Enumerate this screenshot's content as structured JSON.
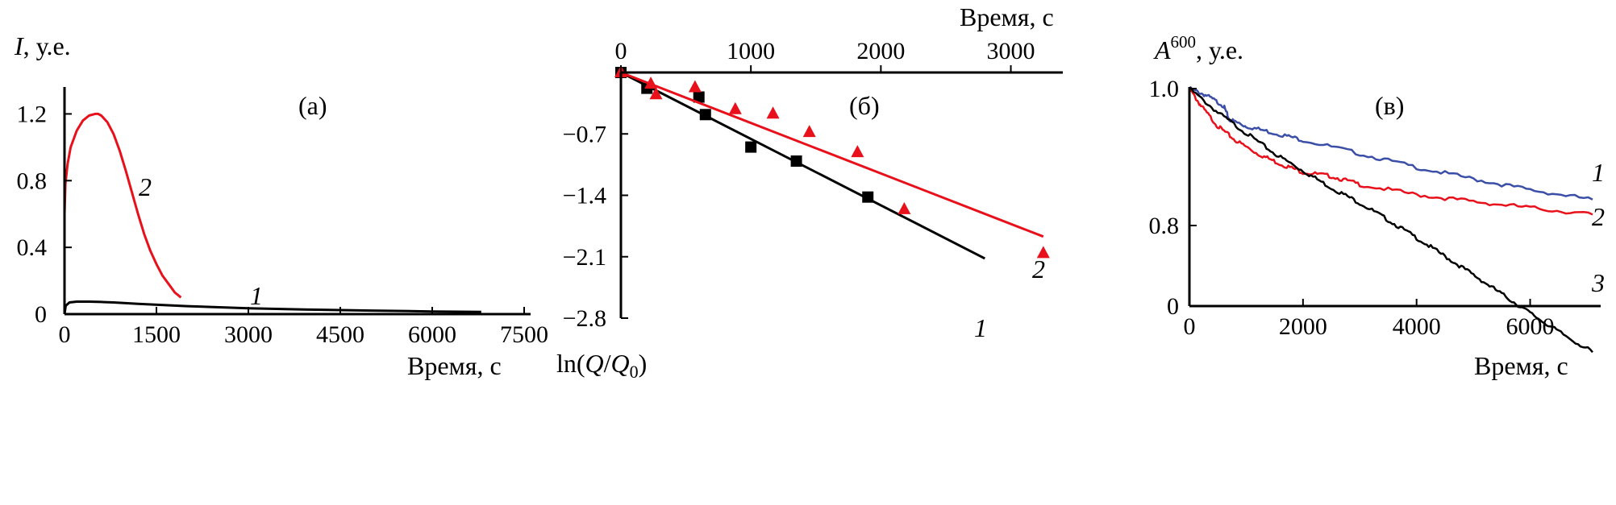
{
  "colors": {
    "black": "#000000",
    "red": "#e8101a",
    "blue": "#3b4ea8"
  },
  "chart_data": [
    {
      "panel": "(а)",
      "type": "line",
      "ylabel_var": "I",
      "ylabel_unit": ", у.е.",
      "xlabel": "Время, с",
      "xlim": [
        0,
        7500
      ],
      "ylim": [
        0,
        1.4
      ],
      "xticks": [
        "0",
        "1500",
        "3000",
        "4500",
        "6000",
        "7500"
      ],
      "yticks": [
        "0",
        "0.4",
        "0.8",
        "1.2"
      ],
      "series": [
        {
          "name": "2",
          "color": "#e8101a",
          "x": [
            0,
            0,
            15,
            50,
            100,
            200,
            300,
            400,
            500,
            550,
            600,
            650,
            700,
            800,
            900,
            1000,
            1100,
            1200,
            1300,
            1400,
            1500,
            1600,
            1700,
            1800,
            1900
          ],
          "y": [
            0,
            0.6,
            0.78,
            0.9,
            1.0,
            1.1,
            1.16,
            1.19,
            1.2,
            1.2,
            1.19,
            1.17,
            1.15,
            1.08,
            0.98,
            0.86,
            0.73,
            0.6,
            0.48,
            0.38,
            0.3,
            0.23,
            0.18,
            0.13,
            0.1
          ]
        },
        {
          "name": "1",
          "color": "#000000",
          "x": [
            0,
            20,
            80,
            200,
            400,
            600,
            800,
            1200,
            2000,
            3000,
            4000,
            5000,
            6000,
            6800
          ],
          "y": [
            0,
            0.05,
            0.07,
            0.075,
            0.075,
            0.073,
            0.07,
            0.062,
            0.048,
            0.035,
            0.027,
            0.021,
            0.016,
            0.013
          ]
        }
      ]
    },
    {
      "panel": "(б)",
      "type": "scatter",
      "xlabel": "Время, с",
      "ylabel_prefix": "ln(",
      "ylabel_q": "Q",
      "ylabel_slash": "/",
      "ylabel_q0": "Q",
      "ylabel_sub": "0",
      "ylabel_suffix": ")",
      "xlim": [
        0,
        3400
      ],
      "ylim": [
        -2.8,
        0
      ],
      "xticks": [
        "0",
        "1000",
        "2000",
        "3000"
      ],
      "yticks": [
        "−0.7",
        "−1.4",
        "−2.1",
        "−2.8"
      ],
      "series": [
        {
          "name": "1",
          "color": "#000000",
          "marker": "square",
          "x": [
            0,
            200,
            600,
            650,
            1000,
            1350,
            1900
          ],
          "y": [
            0,
            -0.18,
            -0.28,
            -0.48,
            -0.85,
            -1.01,
            -1.42
          ],
          "fit": {
            "x": [
              0,
              2800
            ],
            "y": [
              0,
              -2.12
            ]
          }
        },
        {
          "name": "2",
          "color": "#e8101a",
          "marker": "triangle",
          "x": [
            0,
            230,
            270,
            570,
            880,
            1170,
            1450,
            1820,
            2180,
            3250
          ],
          "y": [
            0,
            -0.13,
            -0.25,
            -0.17,
            -0.42,
            -0.47,
            -0.68,
            -0.91,
            -1.56,
            -2.06
          ],
          "fit": {
            "x": [
              0,
              3250
            ],
            "y": [
              0,
              -1.87
            ]
          }
        }
      ]
    },
    {
      "panel": "(в)",
      "type": "line",
      "ylabel_var": "A",
      "ylabel_sup": "600",
      "ylabel_unit": ", у.е.",
      "xlabel": "Время, с",
      "xlim": [
        0,
        7100
      ],
      "ylim": [
        0.57,
        1.0
      ],
      "xticks": [
        "0",
        "2000",
        "4000",
        "6000"
      ],
      "yticks": [
        "0",
        "0.8",
        "1.0"
      ],
      "series": [
        {
          "name": "1",
          "color": "#3b4ea8",
          "x": [
            0,
            300,
            600,
            700,
            1000,
            1500,
            2000,
            3000,
            4000,
            5000,
            6000,
            7100
          ],
          "y": [
            1.0,
            0.99,
            0.975,
            0.955,
            0.945,
            0.935,
            0.925,
            0.905,
            0.885,
            0.868,
            0.852,
            0.838
          ]
        },
        {
          "name": "2",
          "color": "#e8101a",
          "x": [
            0,
            200,
            500,
            800,
            1200,
            1600,
            2000,
            2500,
            3000,
            4000,
            5000,
            6000,
            7100
          ],
          "y": [
            1.0,
            0.975,
            0.945,
            0.925,
            0.905,
            0.89,
            0.878,
            0.872,
            0.86,
            0.845,
            0.835,
            0.826,
            0.816
          ]
        },
        {
          "name": "3",
          "color": "#000000",
          "x": [
            0,
            500,
            1000,
            1500,
            2000,
            2500,
            3000,
            3500,
            4000,
            4500,
            5000,
            5500,
            6000,
            6500,
            7100
          ],
          "y": [
            1.0,
            0.965,
            0.935,
            0.905,
            0.88,
            0.855,
            0.833,
            0.808,
            0.782,
            0.755,
            0.728,
            0.7,
            0.672,
            0.645,
            0.615
          ]
        }
      ]
    }
  ]
}
